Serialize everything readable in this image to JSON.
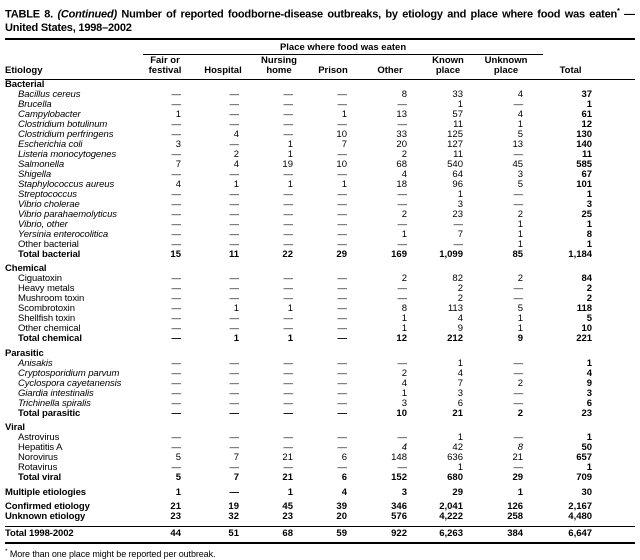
{
  "colors": {
    "text": "#000000",
    "background": "#ffffff",
    "rule": "#000000"
  },
  "title": {
    "table_label": "TABLE 8.",
    "continued": "(Continued)",
    "text": "Number of reported foodborne-disease outbreaks, by etiology and place where food was eaten",
    "footnote_marker": "*",
    "dash": "—",
    "line2": "United States, 1998–2002"
  },
  "table": {
    "spanner_label": "Place where food was eaten",
    "etiology_header": "Etiology",
    "columns": [
      "Fair or\nfestival",
      "Hospital",
      "Nursing\nhome",
      "Prison",
      "Other",
      "Known\nplace",
      "Unknown\nplace",
      "Total"
    ],
    "sections": [
      {
        "name": "Bacterial",
        "rows": [
          {
            "label": "Bacillus cereus",
            "italic": true,
            "values": [
              "—",
              "—",
              "—",
              "—",
              "8",
              "33",
              "4",
              "37"
            ]
          },
          {
            "label": "Brucella",
            "italic": true,
            "values": [
              "—",
              "—",
              "—",
              "—",
              "—",
              "1",
              "—",
              "1"
            ]
          },
          {
            "label": "Campylobacter",
            "italic": true,
            "values": [
              "1",
              "—",
              "—",
              "1",
              "13",
              "57",
              "4",
              "61"
            ]
          },
          {
            "label": "Clostridium botulinum",
            "italic": true,
            "values": [
              "—",
              "—",
              "—",
              "—",
              "—",
              "11",
              "1",
              "12"
            ]
          },
          {
            "label": "Clostridium perfringens",
            "italic": true,
            "values": [
              "—",
              "4",
              "—",
              "10",
              "33",
              "125",
              "5",
              "130"
            ]
          },
          {
            "label": "Escherichia coli",
            "italic": true,
            "values": [
              "3",
              "—",
              "1",
              "7",
              "20",
              "127",
              "13",
              "140"
            ]
          },
          {
            "label": "Listeria monocytogenes",
            "italic": true,
            "values": [
              "—",
              "2",
              "1",
              "—",
              "2",
              "11",
              "—",
              "11"
            ]
          },
          {
            "label": "Salmonella",
            "italic": true,
            "values": [
              "7",
              "4",
              "19",
              "10",
              "68",
              "540",
              "45",
              "585"
            ]
          },
          {
            "label": "Shigella",
            "italic": true,
            "values": [
              "—",
              "—",
              "—",
              "—",
              "4",
              "64",
              "3",
              "67"
            ]
          },
          {
            "label": "Staphylococcus aureus",
            "italic": true,
            "values": [
              "4",
              "1",
              "1",
              "1",
              "18",
              "96",
              "5",
              "101"
            ]
          },
          {
            "label": "Streptococcus",
            "italic": true,
            "values": [
              "—",
              "—",
              "—",
              "—",
              "—",
              "1",
              "—",
              "1"
            ]
          },
          {
            "label": "Vibrio cholerae",
            "italic": true,
            "values": [
              "—",
              "—",
              "—",
              "—",
              "—",
              "3",
              "—",
              "3"
            ]
          },
          {
            "label": "Vibrio parahaemolyticus",
            "italic": true,
            "values": [
              "—",
              "—",
              "—",
              "—",
              "2",
              "23",
              "2",
              "25"
            ]
          },
          {
            "label": "Vibrio, other",
            "italic": true,
            "values": [
              "—",
              "—",
              "—",
              "—",
              "—",
              "—",
              "1",
              "1"
            ]
          },
          {
            "label": "Yersinia enterocolitica",
            "italic": true,
            "values": [
              "—",
              "—",
              "—",
              "—",
              "1",
              "7",
              "1",
              "8"
            ]
          },
          {
            "label": "Other bacterial",
            "values": [
              "—",
              "—",
              "—",
              "—",
              "—",
              "—",
              "1",
              "1"
            ]
          },
          {
            "label": "Total bacterial",
            "bold": true,
            "values": [
              "15",
              "11",
              "22",
              "29",
              "169",
              "1,099",
              "85",
              "1,184"
            ]
          }
        ]
      },
      {
        "name": "Chemical",
        "rows": [
          {
            "label": "Ciguatoxin",
            "values": [
              "—",
              "—",
              "—",
              "—",
              "2",
              "82",
              "2",
              "84"
            ]
          },
          {
            "label": "Heavy metals",
            "values": [
              "—",
              "—",
              "—",
              "—",
              "—",
              "2",
              "—",
              "2"
            ]
          },
          {
            "label": "Mushroom toxin",
            "values": [
              "—",
              "—",
              "—",
              "—",
              "—",
              "2",
              "—",
              "2"
            ]
          },
          {
            "label": "Scombrotoxin",
            "values": [
              "—",
              "1",
              "1",
              "—",
              "8",
              "113",
              "5",
              "118"
            ]
          },
          {
            "label": "Shellfish toxin",
            "values": [
              "—",
              "—",
              "—",
              "—",
              "1",
              "4",
              "1",
              "5"
            ]
          },
          {
            "label": "Other chemical",
            "values": [
              "—",
              "—",
              "—",
              "—",
              "1",
              "9",
              "1",
              "10"
            ]
          },
          {
            "label": "Total chemical",
            "bold": true,
            "values": [
              "—",
              "1",
              "1",
              "—",
              "12",
              "212",
              "9",
              "221"
            ]
          }
        ]
      },
      {
        "name": "Parasitic",
        "rows": [
          {
            "label": "Anisakis",
            "italic": true,
            "values": [
              "—",
              "—",
              "—",
              "—",
              "—",
              "1",
              "—",
              "1"
            ]
          },
          {
            "label": "Cryptosporidium parvum",
            "italic": true,
            "values": [
              "—",
              "—",
              "—",
              "—",
              "2",
              "4",
              "—",
              "4"
            ]
          },
          {
            "label": "Cyclospora cayetanensis",
            "italic": true,
            "values": [
              "—",
              "—",
              "—",
              "—",
              "4",
              "7",
              "2",
              "9"
            ]
          },
          {
            "label": "Giardia intestinalis",
            "italic": true,
            "values": [
              "—",
              "—",
              "—",
              "—",
              "1",
              "3",
              "—",
              "3"
            ]
          },
          {
            "label": "Trichinella spiralis",
            "italic": true,
            "values": [
              "—",
              "—",
              "—",
              "—",
              "3",
              "6",
              "—",
              "6"
            ]
          },
          {
            "label": "Total parasitic",
            "bold": true,
            "values": [
              "—",
              "—",
              "—",
              "—",
              "10",
              "21",
              "2",
              "23"
            ]
          }
        ]
      },
      {
        "name": "Viral",
        "rows": [
          {
            "label": "Astrovirus",
            "values": [
              "—",
              "—",
              "—",
              "—",
              "—",
              "1",
              "—",
              "1"
            ]
          },
          {
            "label": "Hepatitis A",
            "values": [
              "—",
              "—",
              "—",
              "—",
              "4",
              "42",
              "8",
              "50"
            ],
            "italic_cells": [
              4,
              6
            ]
          },
          {
            "label": "Norovirus",
            "values": [
              "5",
              "7",
              "21",
              "6",
              "148",
              "636",
              "21",
              "657"
            ]
          },
          {
            "label": "Rotavirus",
            "values": [
              "—",
              "—",
              "—",
              "—",
              "—",
              "1",
              "—",
              "1"
            ]
          },
          {
            "label": "Total viral",
            "bold": true,
            "values": [
              "5",
              "7",
              "21",
              "6",
              "152",
              "680",
              "29",
              "709"
            ]
          }
        ]
      }
    ],
    "summary_rows": [
      {
        "label": "Multiple etiologies",
        "bold": true,
        "gap_before": true,
        "values": [
          "1",
          "—",
          "1",
          "4",
          "3",
          "29",
          "1",
          "30"
        ]
      },
      {
        "label": "Confirmed etiology",
        "bold": true,
        "gap_before": true,
        "values": [
          "21",
          "19",
          "45",
          "39",
          "346",
          "2,041",
          "126",
          "2,167"
        ]
      },
      {
        "label": "Unknown etiology",
        "bold": true,
        "values": [
          "23",
          "32",
          "23",
          "20",
          "576",
          "4,222",
          "258",
          "4,480"
        ]
      },
      {
        "label": "Total 1998-2002",
        "bold": true,
        "gap_before": true,
        "rule_top": true,
        "values": [
          "44",
          "51",
          "68",
          "59",
          "922",
          "6,263",
          "384",
          "6,647"
        ]
      }
    ]
  },
  "footnote": {
    "marker": "*",
    "text": "More than one place might be reported per outbreak."
  }
}
